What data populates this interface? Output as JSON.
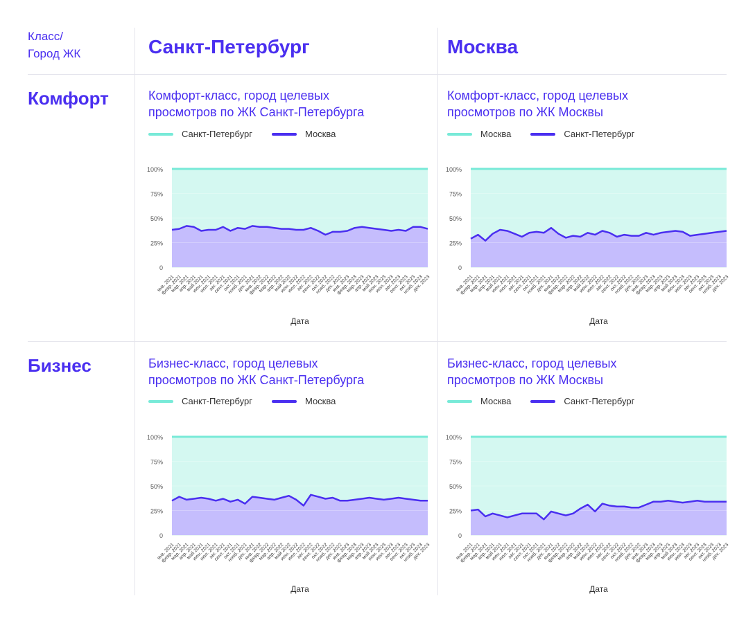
{
  "header": {
    "corner_label_line1": "Класс/",
    "corner_label_line2": "Город ЖК",
    "col_spb": "Санкт-Петербург",
    "col_msk": "Москва"
  },
  "rows": {
    "comfort": "Комфорт",
    "business": "Бизнес"
  },
  "colors": {
    "teal": "#78ead8",
    "teal_fill": "#d4f8f1",
    "purple": "#4a2ff0",
    "purple_fill": "#c5bdfd"
  },
  "chart_data": [
    {
      "type": "area",
      "title_line1": "Комфорт-класс, город целевых",
      "title_line2": "просмотров по ЖК Санкт-Петербурга",
      "xlabel": "Дата",
      "ylabel": "",
      "yticks": [
        "100%",
        "75%",
        "50%",
        "25%",
        "0"
      ],
      "ylim": [
        0,
        100
      ],
      "legend": [
        "Санкт-Петербург",
        "Москва"
      ],
      "categories": [
        "янв. 2021",
        "февр. 2021",
        "мар. 2021",
        "апр. 2021",
        "май 2021",
        "июн. 2021",
        "июл. 2021",
        "авг. 2021",
        "сент. 2021",
        "окт. 2021",
        "нояб. 2021",
        "дек. 2021",
        "янв. 2022",
        "февр. 2022",
        "мар. 2022",
        "апр. 2022",
        "май 2022",
        "июн. 2022",
        "июл. 2022",
        "авг. 2022",
        "сент. 2022",
        "окт. 2022",
        "нояб. 2022",
        "дек. 2022",
        "янв. 2023",
        "февр. 2023",
        "мар. 2023",
        "апр. 2023",
        "май 2023",
        "июн. 2023",
        "июл. 2023",
        "авг. 2023",
        "сент. 2023",
        "окт. 2023",
        "нояб. 2023",
        "дек. 2023"
      ],
      "series": [
        {
          "name": "Санкт-Петербург",
          "values": [
            100,
            100,
            100,
            100,
            100,
            100,
            100,
            100,
            100,
            100,
            100,
            100,
            100,
            100,
            100,
            100,
            100,
            100,
            100,
            100,
            100,
            100,
            100,
            100,
            100,
            100,
            100,
            100,
            100,
            100,
            100,
            100,
            100,
            100,
            100,
            100
          ]
        },
        {
          "name": "Москва",
          "values": [
            38,
            39,
            42,
            41,
            37,
            38,
            38,
            41,
            37,
            40,
            39,
            42,
            41,
            41,
            40,
            39,
            39,
            38,
            38,
            40,
            37,
            33,
            36,
            36,
            37,
            40,
            41,
            40,
            39,
            38,
            37,
            38,
            37,
            41,
            41,
            39
          ]
        }
      ]
    },
    {
      "type": "area",
      "title_line1": "Комфорт-класс, город целевых",
      "title_line2": "просмотров по ЖК Москвы",
      "xlabel": "Дата",
      "ylabel": "",
      "yticks": [
        "100%",
        "75%",
        "50%",
        "25%",
        "0"
      ],
      "ylim": [
        0,
        100
      ],
      "legend": [
        "Москва",
        "Санкт-Петербург"
      ],
      "categories": [
        "янв. 2021",
        "февр. 2021",
        "мар. 2021",
        "апр. 2021",
        "май 2021",
        "июн. 2021",
        "июл. 2021",
        "авг. 2021",
        "сент. 2021",
        "окт. 2021",
        "нояб. 2021",
        "дек. 2021",
        "янв. 2022",
        "февр. 2022",
        "мар. 2022",
        "апр. 2022",
        "май 2022",
        "июн. 2022",
        "июл. 2022",
        "авг. 2022",
        "сент. 2022",
        "окт. 2022",
        "нояб. 2022",
        "дек. 2022",
        "янв. 2023",
        "февр. 2023",
        "мар. 2023",
        "апр. 2023",
        "май 2023",
        "июн. 2023",
        "июл. 2023",
        "авг. 2023",
        "сент. 2023",
        "окт. 2023",
        "нояб. 2023",
        "дек. 2023"
      ],
      "series": [
        {
          "name": "Москва",
          "values": [
            100,
            100,
            100,
            100,
            100,
            100,
            100,
            100,
            100,
            100,
            100,
            100,
            100,
            100,
            100,
            100,
            100,
            100,
            100,
            100,
            100,
            100,
            100,
            100,
            100,
            100,
            100,
            100,
            100,
            100,
            100,
            100,
            100,
            100,
            100,
            100
          ]
        },
        {
          "name": "Санкт-Петербург",
          "values": [
            29,
            33,
            27,
            34,
            38,
            37,
            34,
            31,
            35,
            36,
            35,
            40,
            34,
            30,
            32,
            31,
            35,
            33,
            37,
            35,
            31,
            33,
            32,
            32,
            35,
            33,
            35,
            36,
            37,
            36,
            32,
            33,
            34,
            35,
            36,
            37
          ]
        }
      ]
    },
    {
      "type": "area",
      "title_line1": "Бизнес-класс, город целевых",
      "title_line2": "просмотров по ЖК Санкт-Петербурга",
      "xlabel": "Дата",
      "ylabel": "",
      "yticks": [
        "100%",
        "75%",
        "50%",
        "25%",
        "0"
      ],
      "ylim": [
        0,
        100
      ],
      "legend": [
        "Санкт-Петербург",
        "Москва"
      ],
      "categories": [
        "янв. 2021",
        "февр. 2021",
        "мар. 2021",
        "апр. 2021",
        "май 2021",
        "июн. 2021",
        "июл. 2021",
        "авг. 2021",
        "сент. 2021",
        "окт. 2021",
        "нояб. 2021",
        "дек. 2021",
        "янв. 2022",
        "февр. 2022",
        "мар. 2022",
        "апр. 2022",
        "май 2022",
        "июн. 2022",
        "июл. 2022",
        "авг. 2022",
        "сент. 2022",
        "окт. 2022",
        "нояб. 2022",
        "дек. 2022",
        "янв. 2023",
        "февр. 2023",
        "мар. 2023",
        "апр. 2023",
        "май 2023",
        "июн. 2023",
        "июл. 2023",
        "авг. 2023",
        "сент. 2023",
        "окт. 2023",
        "нояб. 2023",
        "дек. 2023"
      ],
      "series": [
        {
          "name": "Санкт-Петербург",
          "values": [
            100,
            100,
            100,
            100,
            100,
            100,
            100,
            100,
            100,
            100,
            100,
            100,
            100,
            100,
            100,
            100,
            100,
            100,
            100,
            100,
            100,
            100,
            100,
            100,
            100,
            100,
            100,
            100,
            100,
            100,
            100,
            100,
            100,
            100,
            100,
            100
          ]
        },
        {
          "name": "Москва",
          "values": [
            35,
            39,
            36,
            37,
            38,
            37,
            35,
            37,
            34,
            36,
            32,
            39,
            38,
            37,
            36,
            38,
            40,
            36,
            30,
            41,
            39,
            37,
            38,
            35,
            35,
            36,
            37,
            38,
            37,
            36,
            37,
            38,
            37,
            36,
            35,
            35
          ]
        }
      ]
    },
    {
      "type": "area",
      "title_line1": "Бизнес-класс, город целевых",
      "title_line2": "просмотров по ЖК Москвы",
      "xlabel": "Дата",
      "ylabel": "",
      "yticks": [
        "100%",
        "75%",
        "50%",
        "25%",
        "0"
      ],
      "ylim": [
        0,
        100
      ],
      "legend": [
        "Москва",
        "Санкт-Петербург"
      ],
      "categories": [
        "янв. 2021",
        "февр. 2021",
        "мар. 2021",
        "апр. 2021",
        "май 2021",
        "июн. 2021",
        "июл. 2021",
        "авг. 2021",
        "сент. 2021",
        "окт. 2021",
        "нояб. 2021",
        "дек. 2021",
        "янв. 2022",
        "февр. 2022",
        "мар. 2022",
        "апр. 2022",
        "май 2022",
        "июн. 2022",
        "июл. 2022",
        "авг. 2022",
        "сент. 2022",
        "окт. 2022",
        "нояб. 2022",
        "дек. 2022",
        "янв. 2023",
        "февр. 2023",
        "мар. 2023",
        "апр. 2023",
        "май 2023",
        "июн. 2023",
        "июл. 2023",
        "авг. 2023",
        "сент. 2023",
        "окт. 2023",
        "нояб. 2023",
        "дек. 2023"
      ],
      "series": [
        {
          "name": "Москва",
          "values": [
            100,
            100,
            100,
            100,
            100,
            100,
            100,
            100,
            100,
            100,
            100,
            100,
            100,
            100,
            100,
            100,
            100,
            100,
            100,
            100,
            100,
            100,
            100,
            100,
            100,
            100,
            100,
            100,
            100,
            100,
            100,
            100,
            100,
            100,
            100,
            100
          ]
        },
        {
          "name": "Санкт-Петербург",
          "values": [
            25,
            26,
            19,
            22,
            20,
            18,
            20,
            22,
            22,
            22,
            16,
            24,
            22,
            20,
            22,
            27,
            31,
            24,
            32,
            30,
            29,
            29,
            28,
            28,
            31,
            34,
            34,
            35,
            34,
            33,
            34,
            35,
            34,
            34,
            34,
            34
          ]
        }
      ]
    }
  ]
}
